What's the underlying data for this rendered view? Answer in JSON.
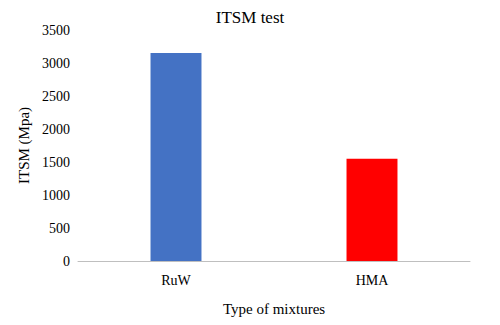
{
  "chart_data": {
    "type": "bar",
    "title": "ITSM test",
    "x_label": "Type of mixtures",
    "y_label": "ITSM (Mpa)",
    "categories": [
      "RuW",
      "HMA"
    ],
    "values": [
      3150,
      1550
    ],
    "colors": [
      "#4472c4",
      "#ff0000"
    ],
    "ylim": [
      0,
      3500
    ],
    "yticks": [
      0,
      500,
      1000,
      1500,
      2000,
      2500,
      3000,
      3500
    ],
    "grid": false
  }
}
